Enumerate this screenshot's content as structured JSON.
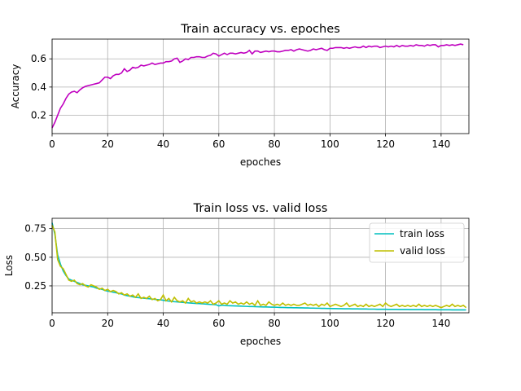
{
  "chart_data": [
    {
      "type": "line",
      "title": "Train accuracy vs. epoches",
      "xlabel": "epoches",
      "ylabel": "Accuracy",
      "xlim": [
        0,
        150
      ],
      "ylim": [
        0.07,
        0.74
      ],
      "xticks": [
        0,
        20,
        40,
        60,
        80,
        100,
        120,
        140
      ],
      "yticks": [
        0.2,
        0.4,
        0.6
      ],
      "ytick_labels": [
        "0.2",
        "0.4",
        "0.6"
      ],
      "grid": true,
      "colors": [
        "#bf00bf"
      ],
      "series": [
        {
          "name": "",
          "x_start": 0,
          "values": [
            0.11,
            0.15,
            0.2,
            0.25,
            0.28,
            0.32,
            0.35,
            0.365,
            0.37,
            0.36,
            0.38,
            0.395,
            0.405,
            0.41,
            0.415,
            0.42,
            0.425,
            0.43,
            0.45,
            0.47,
            0.47,
            0.46,
            0.48,
            0.49,
            0.49,
            0.5,
            0.53,
            0.51,
            0.52,
            0.54,
            0.535,
            0.54,
            0.555,
            0.55,
            0.555,
            0.56,
            0.57,
            0.56,
            0.565,
            0.57,
            0.57,
            0.58,
            0.58,
            0.585,
            0.6,
            0.605,
            0.575,
            0.585,
            0.6,
            0.595,
            0.61,
            0.61,
            0.615,
            0.615,
            0.61,
            0.61,
            0.62,
            0.625,
            0.64,
            0.635,
            0.62,
            0.63,
            0.64,
            0.63,
            0.64,
            0.64,
            0.635,
            0.64,
            0.645,
            0.64,
            0.645,
            0.66,
            0.635,
            0.655,
            0.655,
            0.645,
            0.65,
            0.655,
            0.65,
            0.655,
            0.655,
            0.65,
            0.65,
            0.655,
            0.66,
            0.66,
            0.665,
            0.655,
            0.665,
            0.67,
            0.665,
            0.66,
            0.655,
            0.66,
            0.67,
            0.665,
            0.67,
            0.675,
            0.665,
            0.66,
            0.675,
            0.675,
            0.68,
            0.68,
            0.68,
            0.675,
            0.68,
            0.675,
            0.68,
            0.685,
            0.68,
            0.68,
            0.69,
            0.68,
            0.69,
            0.685,
            0.69,
            0.69,
            0.68,
            0.685,
            0.69,
            0.685,
            0.69,
            0.685,
            0.695,
            0.685,
            0.695,
            0.69,
            0.69,
            0.695,
            0.69,
            0.7,
            0.695,
            0.695,
            0.69,
            0.7,
            0.695,
            0.7,
            0.7,
            0.685,
            0.695,
            0.695,
            0.7,
            0.695,
            0.7,
            0.695,
            0.7,
            0.705,
            0.7
          ]
        }
      ]
    },
    {
      "type": "line",
      "title": "Train loss vs. valid loss",
      "xlabel": "epoches",
      "ylabel": "Loss",
      "xlim": [
        0,
        150
      ],
      "ylim": [
        0.015,
        0.84
      ],
      "xticks": [
        0,
        20,
        40,
        60,
        80,
        100,
        120,
        140
      ],
      "yticks": [
        0.25,
        0.5,
        0.75
      ],
      "ytick_labels": [
        "0.25",
        "0.50",
        "0.75"
      ],
      "grid": true,
      "legend": "top-right",
      "series": [
        {
          "name": "train loss",
          "color": "#00bfbf",
          "x_start": 0,
          "values": [
            0.8,
            0.7,
            0.52,
            0.44,
            0.38,
            0.34,
            0.31,
            0.3,
            0.29,
            0.28,
            0.27,
            0.26,
            0.255,
            0.25,
            0.245,
            0.24,
            0.23,
            0.225,
            0.22,
            0.21,
            0.205,
            0.2,
            0.195,
            0.19,
            0.185,
            0.18,
            0.17,
            0.165,
            0.16,
            0.155,
            0.15,
            0.148,
            0.145,
            0.142,
            0.14,
            0.138,
            0.135,
            0.132,
            0.13,
            0.128,
            0.125,
            0.12,
            0.118,
            0.115,
            0.112,
            0.11,
            0.108,
            0.106,
            0.104,
            0.102,
            0.1,
            0.098,
            0.096,
            0.095,
            0.094,
            0.092,
            0.09,
            0.088,
            0.087,
            0.086,
            0.075,
            0.082,
            0.08,
            0.078,
            0.077,
            0.076,
            0.075,
            0.074,
            0.073,
            0.072,
            0.071,
            0.07,
            0.07,
            0.069,
            0.068,
            0.067,
            0.066,
            0.066,
            0.065,
            0.064,
            0.064,
            0.063,
            0.062,
            0.062,
            0.061,
            0.06,
            0.06,
            0.059,
            0.059,
            0.058,
            0.058,
            0.057,
            0.057,
            0.056,
            0.056,
            0.055,
            0.055,
            0.054,
            0.054,
            0.053,
            0.053,
            0.052,
            0.052,
            0.051,
            0.051,
            0.05,
            0.05,
            0.05,
            0.049,
            0.049,
            0.049,
            0.048,
            0.048,
            0.048,
            0.047,
            0.047,
            0.047,
            0.046,
            0.046,
            0.046,
            0.046,
            0.045,
            0.045,
            0.045,
            0.045,
            0.044,
            0.044,
            0.044,
            0.044,
            0.043,
            0.043,
            0.043,
            0.043,
            0.043,
            0.042,
            0.042,
            0.042,
            0.042,
            0.042,
            0.041,
            0.041,
            0.041,
            0.041,
            0.041,
            0.04,
            0.04,
            0.04,
            0.04,
            0.04,
            0.04
          ]
        },
        {
          "name": "valid loss",
          "color": "#bfbf00",
          "x_start": 0,
          "values": [
            0.78,
            0.72,
            0.48,
            0.42,
            0.4,
            0.35,
            0.3,
            0.29,
            0.3,
            0.27,
            0.26,
            0.27,
            0.25,
            0.24,
            0.26,
            0.25,
            0.24,
            0.22,
            0.23,
            0.21,
            0.22,
            0.2,
            0.21,
            0.2,
            0.18,
            0.19,
            0.17,
            0.18,
            0.16,
            0.17,
            0.15,
            0.18,
            0.14,
            0.15,
            0.14,
            0.16,
            0.13,
            0.14,
            0.12,
            0.13,
            0.17,
            0.12,
            0.14,
            0.11,
            0.15,
            0.12,
            0.11,
            0.12,
            0.1,
            0.14,
            0.11,
            0.12,
            0.1,
            0.11,
            0.1,
            0.11,
            0.1,
            0.12,
            0.09,
            0.1,
            0.12,
            0.09,
            0.1,
            0.09,
            0.12,
            0.1,
            0.11,
            0.09,
            0.1,
            0.09,
            0.11,
            0.09,
            0.1,
            0.08,
            0.12,
            0.08,
            0.09,
            0.08,
            0.11,
            0.09,
            0.08,
            0.09,
            0.08,
            0.1,
            0.08,
            0.09,
            0.08,
            0.09,
            0.08,
            0.08,
            0.09,
            0.1,
            0.08,
            0.09,
            0.08,
            0.09,
            0.07,
            0.09,
            0.08,
            0.1,
            0.07,
            0.08,
            0.09,
            0.08,
            0.07,
            0.08,
            0.1,
            0.07,
            0.08,
            0.09,
            0.07,
            0.08,
            0.07,
            0.09,
            0.07,
            0.08,
            0.07,
            0.08,
            0.09,
            0.07,
            0.1,
            0.08,
            0.07,
            0.08,
            0.09,
            0.07,
            0.08,
            0.07,
            0.08,
            0.07,
            0.08,
            0.07,
            0.09,
            0.07,
            0.08,
            0.07,
            0.08,
            0.07,
            0.08,
            0.07,
            0.06,
            0.07,
            0.08,
            0.07,
            0.09,
            0.07,
            0.08,
            0.07,
            0.08,
            0.06
          ]
        }
      ]
    }
  ]
}
